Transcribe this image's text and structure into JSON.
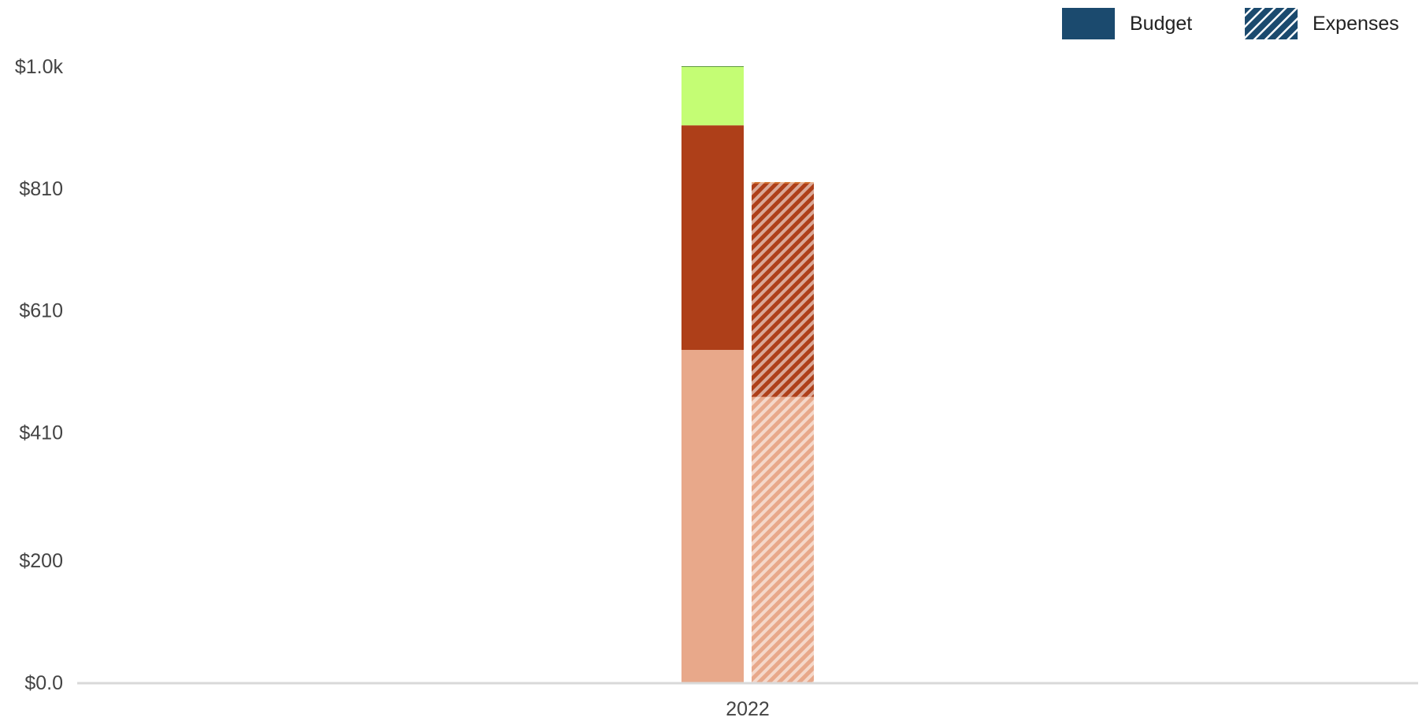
{
  "chart_data": {
    "type": "bar",
    "stacked": true,
    "categories": [
      "2022"
    ],
    "y_ticks": [
      {
        "value": 0,
        "label": "$0.0"
      },
      {
        "value": 200,
        "label": "$200"
      },
      {
        "value": 410,
        "label": "$410"
      },
      {
        "value": 610,
        "label": "$610"
      },
      {
        "value": 810,
        "label": "$810"
      },
      {
        "value": 1010,
        "label": "$1.0k"
      }
    ],
    "ylim": [
      0,
      1010
    ],
    "grid": false,
    "legend_position": "top-right",
    "legend": [
      {
        "label": "Budget",
        "style": "solid",
        "color": "#1b4a6e"
      },
      {
        "label": "Expenses",
        "style": "hatched",
        "color": "#1b4a6e"
      }
    ],
    "series": [
      {
        "group": "Budget",
        "style": "solid",
        "segments": [
          {
            "value": 545,
            "color": "#e8a88a"
          },
          {
            "value": 368,
            "color": "#ae3f19"
          },
          {
            "value": 96,
            "color": "#c4fd74"
          },
          {
            "value": 1,
            "color": "#3a7a1c"
          }
        ]
      },
      {
        "group": "Expenses",
        "style": "hatched",
        "segments": [
          {
            "value": 468,
            "color": "#e8a88a"
          },
          {
            "value": 350,
            "color": "#ae3f19"
          },
          {
            "value": 2,
            "color": "#d2691e"
          }
        ]
      }
    ],
    "colors": {
      "axis": "#d9d9d9",
      "tick_text": "#444444",
      "legend_swatch": "#1b4a6e"
    }
  }
}
